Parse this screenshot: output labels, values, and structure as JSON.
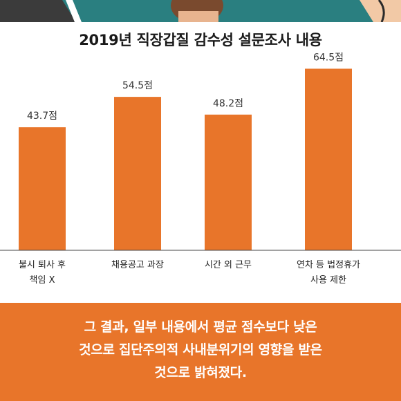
{
  "chart_data": {
    "type": "bar",
    "title": "2019년 직장갑질 감수성 설문조사 내용",
    "categories": [
      [
        "불시 퇴사 후",
        "책임 X"
      ],
      [
        "채용공고 과장"
      ],
      [
        "시간 외 근무"
      ],
      [
        "연차 등 법정휴가",
        "사용 제한"
      ]
    ],
    "values": [
      43.7,
      54.5,
      48.2,
      64.5
    ],
    "value_labels": [
      "43.7점",
      "54.5점",
      "48.2점",
      "64.5점"
    ],
    "bar_color": "#e8752a",
    "grid": false,
    "ylim": [
      0,
      70
    ]
  },
  "caption": {
    "lines": [
      "그 결과, 일부 내용에서 평균 점수보다 낮은",
      "것으로 집단주의적 사내분위기의 영향을 받은",
      "것으로 밝혀졌다."
    ]
  },
  "colors": {
    "accent": "#e8752a",
    "teal": "#2a7f80"
  }
}
